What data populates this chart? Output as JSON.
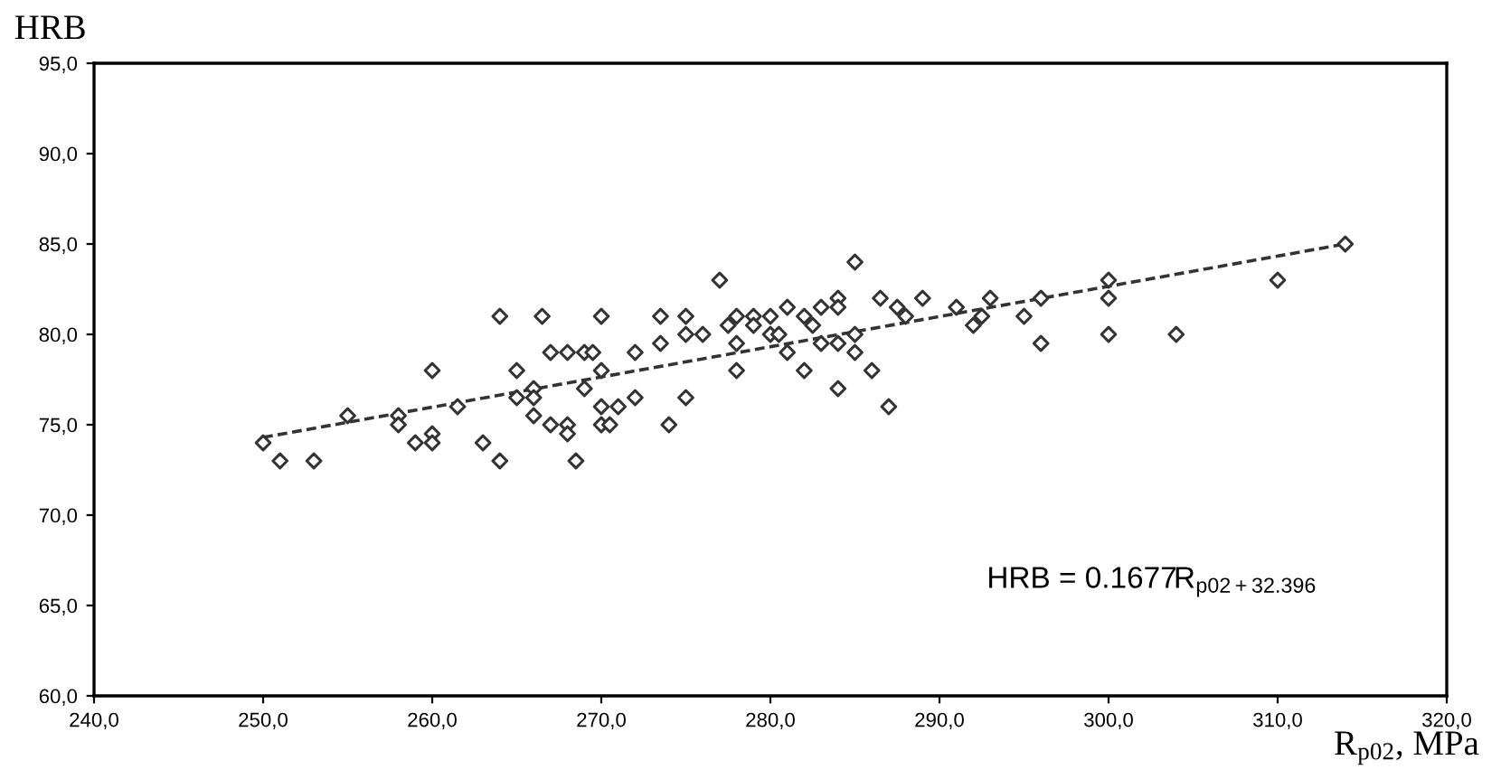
{
  "chart_data": {
    "type": "scatter",
    "ylabel": "HRB",
    "xlabel": "R$_{p02}$, MPa",
    "annotations": [
      "HRB = 0.1677R$_{p02+32.396}$"
    ],
    "xlim": [
      240,
      320
    ],
    "ylim": [
      60,
      95
    ],
    "xticks": [
      {
        "value": 240,
        "label": "240,0"
      },
      {
        "value": 250,
        "label": "250,0"
      },
      {
        "value": 260,
        "label": "260,0"
      },
      {
        "value": 270,
        "label": "270,0"
      },
      {
        "value": 280,
        "label": "280,0"
      },
      {
        "value": 290,
        "label": "290,0"
      },
      {
        "value": 300,
        "label": "300,0"
      },
      {
        "value": 310,
        "label": "310,0"
      },
      {
        "value": 320,
        "label": "320,0"
      }
    ],
    "yticks": [
      {
        "value": 60,
        "label": "60,0"
      },
      {
        "value": 65,
        "label": "65,0"
      },
      {
        "value": 70,
        "label": "70,0"
      },
      {
        "value": 75,
        "label": "75,0"
      },
      {
        "value": 80,
        "label": "80,0"
      },
      {
        "value": 85,
        "label": "85,0"
      },
      {
        "value": 90,
        "label": "90,0"
      },
      {
        "value": 95,
        "label": "95,0"
      }
    ],
    "grid": false,
    "marker": "diamond",
    "series": [
      {
        "color": "#333333",
        "x": [
          250,
          251,
          253,
          255,
          258,
          258,
          259,
          260,
          260,
          260,
          261.5,
          263,
          264,
          264,
          265,
          265,
          266,
          266,
          266,
          266.5,
          267,
          267,
          268,
          268,
          268,
          268.5,
          269,
          269,
          269.5,
          270,
          270,
          270,
          270,
          270.5,
          271,
          272,
          272,
          273.5,
          273.5,
          274,
          275,
          275,
          275,
          276,
          277,
          277.5,
          278,
          278,
          278,
          279,
          279,
          280,
          280,
          280.5,
          281,
          281,
          282,
          282,
          282.5,
          283,
          283,
          284,
          284,
          284,
          284,
          285,
          285,
          285,
          286,
          286.5,
          287,
          287.5,
          288,
          289,
          291,
          292,
          292.5,
          293,
          295,
          296,
          296,
          300,
          300,
          300,
          304,
          310,
          314
        ],
        "values": [
          74,
          73,
          73,
          75.5,
          75.5,
          75,
          74,
          78,
          74.5,
          74,
          76,
          74,
          81,
          73,
          78,
          76.5,
          77,
          76.5,
          75.5,
          81,
          79,
          75,
          79,
          75,
          74.5,
          73,
          77,
          79,
          79,
          81,
          78,
          75,
          76,
          75,
          76,
          79,
          76.5,
          81,
          79.5,
          75,
          81,
          80,
          76.5,
          80,
          83,
          80.5,
          81,
          79.5,
          78,
          81,
          80.5,
          81,
          80,
          80,
          79,
          81.5,
          78,
          81,
          80.5,
          81.5,
          79.5,
          82,
          81.5,
          79.5,
          77,
          84,
          80,
          79,
          78,
          82,
          76,
          81.5,
          81,
          82,
          81.5,
          80.5,
          81,
          82,
          81,
          82,
          79.5,
          83,
          82,
          80,
          80,
          83,
          85
        ]
      },
      {
        "type": "line",
        "color": "#333333",
        "line_style": "dashed",
        "marker": "none",
        "x": [
          250,
          314
        ],
        "values": [
          74.3,
          85.0
        ]
      }
    ]
  }
}
